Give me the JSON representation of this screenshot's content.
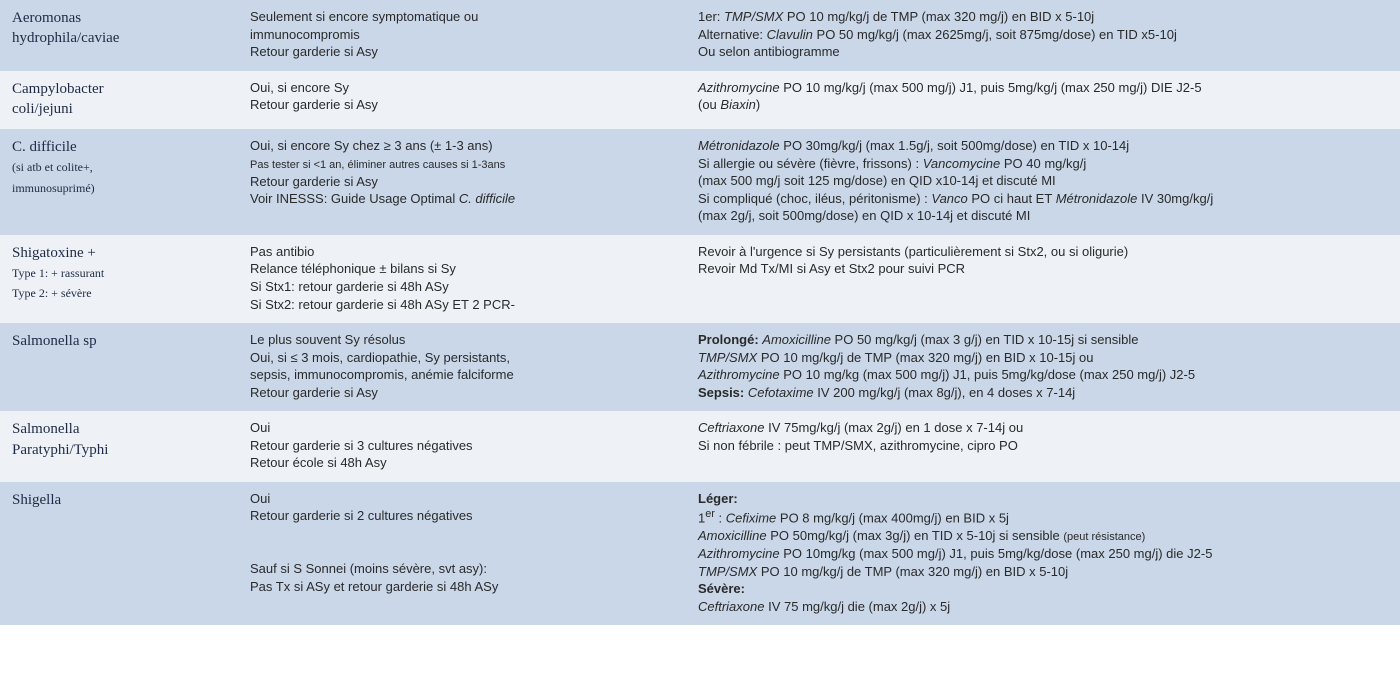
{
  "table": {
    "row_colors": {
      "dark": "#c9d7e8",
      "light": "#eef2f7"
    },
    "rows": [
      {
        "shade": "dark",
        "pathogen_html": "Aeromonas\nhydrophila/caviae",
        "col2_html": "Seulement si encore symptomatique ou\nimmunocompromis\nRetour garderie si Asy",
        "col3_html": "1er: <span class='ital'>TMP/SMX</span> PO 10 mg/kg/j de TMP (max 320 mg/j) en BID x 5-10j\nAlternative: <span class='ital'>Clavulin</span> PO 50 mg/kg/j (max 2625mg/j, soit 875mg/dose) en TID x5-10j\nOu selon antibiogramme"
      },
      {
        "shade": "light",
        "pathogen_html": "Campylobacter\ncoli/jejuni",
        "col2_html": "Oui, si encore Sy\nRetour garderie si Asy",
        "col3_html": "<span class='ital'>Azithromycine</span> PO 10 mg/kg/j (max 500 mg/j) J1, puis 5mg/kg/j (max 250 mg/j) DIE J2-5\n(ou <span class='ital'>Biaxin</span>)"
      },
      {
        "shade": "dark",
        "pathogen_html": "C. difficile\n<span class='sub'>(si atb et colite+,\nimmunosuprimé)</span>",
        "col2_html": "Oui, si encore Sy chez ≥ 3 ans (± 1-3 ans)\n<span class='small'>Pas tester si &lt;1 an, éliminer autres causes si 1-3ans</span>\nRetour garderie si Asy\nVoir INESSS: Guide Usage Optimal <span class='ital'>C. difficile</span>",
        "col3_html": "<span class='ital'>Métronidazole</span> PO 30mg/kg/j (max 1.5g/j, soit 500mg/dose) en TID x 10-14j\nSi allergie ou sévère (fièvre, frissons) : <span class='ital'>Vancomycine</span> PO 40 mg/kg/j\n(max 500 mg/j soit 125 mg/dose) en QID x10-14j et discuté MI\nSi compliqué (choc, iléus, péritonisme) : <span class='ital'>Vanco</span> PO ci haut ET <span class='ital'>Métronidazole</span> IV 30mg/kg/j\n(max 2g/j, soit 500mg/dose) en QID x 10-14j et discuté MI"
      },
      {
        "shade": "light",
        "pathogen_html": "Shigatoxine +\n<span class='sub'>Type 1: + rassurant\nType 2: + sévère</span>",
        "col2_html": "Pas antibio\nRelance téléphonique ± bilans si Sy\nSi Stx1: retour garderie si 48h ASy\nSi Stx2: retour garderie si 48h ASy ET 2 PCR-",
        "col3_html": "Revoir à l'urgence si Sy persistants (particulièrement si Stx2, ou si oligurie)\nRevoir Md Tx/MI si Asy et Stx2 pour suivi PCR"
      },
      {
        "shade": "dark",
        "pathogen_html": "Salmonella sp",
        "col2_html": "Le plus souvent Sy résolus\nOui, si ≤ 3 mois, cardiopathie, Sy persistants,\nsepsis, immunocompromis, anémie falciforme\nRetour garderie si Asy",
        "col3_html": "<span class='bold'>Prolongé:</span> <span class='ital'>Amoxicilline</span> PO 50 mg/kg/j (max 3 g/j) en TID x 10-15j si sensible\n<span class='ital'>TMP/SMX</span> PO 10 mg/kg/j de TMP (max 320 mg/j) en BID x 10-15j ou\n<span class='ital'>Azithromycine</span> PO 10 mg/kg (max 500 mg/j) J1, puis 5mg/kg/dose (max 250 mg/j) J2-5\n<span class='bold'>Sepsis:</span> <span class='ital'>Cefotaxime</span> IV 200 mg/kg/j (max 8g/j), en 4 doses x 7-14j"
      },
      {
        "shade": "light",
        "pathogen_html": "Salmonella\nParatyphi/Typhi",
        "col2_html": "Oui\nRetour garderie si 3 cultures négatives\nRetour école si 48h Asy",
        "col3_html": "<span class='ital'>Ceftriaxone</span> IV 75mg/kg/j (max 2g/j) en 1 dose x 7-14j   ou\nSi non fébrile : peut TMP/SMX, azithromycine, cipro PO"
      },
      {
        "shade": "dark",
        "pathogen_html": "Shigella",
        "col2_html": "Oui\nRetour garderie si 2 cultures négatives\n\n\nSauf si S Sonnei (moins sévère, svt asy):\nPas Tx si ASy et retour garderie si 48h ASy",
        "col3_html": "<span class='bold'>Léger:</span>\n1<sup>er</sup> : <span class='ital'>Cefixime</span> PO 8 mg/kg/j (max 400mg/j) en BID x 5j\n<span class='ital'>Amoxicilline</span> PO 50mg/kg/j (max 3g/j) en TID x 5-10j si sensible <span class='small'>(peut résistance)</span>\n<span class='ital'>Azithromycine</span> PO 10mg/kg (max 500 mg/j) J1, puis 5mg/kg/dose (max 250 mg/j) die J2-5\n<span class='ital'>TMP/SMX</span> PO 10 mg/kg/j de TMP (max 320 mg/j) en BID x 5-10j\n<span class='bold'>Sévère:</span>\n<span class='ital'>Ceftriaxone</span> IV 75 mg/kg/j die (max 2g/j) x 5j"
      }
    ]
  }
}
